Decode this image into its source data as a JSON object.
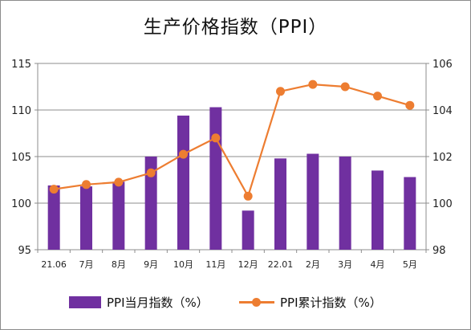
{
  "chart_data": {
    "type": "bar",
    "title": "生产价格指数（PPI）",
    "categories": [
      "21.06",
      "7月",
      "8月",
      "9月",
      "10月",
      "11月",
      "12月",
      "22.01",
      "2月",
      "3月",
      "4月",
      "5月"
    ],
    "y_left": {
      "ylim": [
        95,
        115
      ],
      "ticks": [
        "95",
        "100",
        "105",
        "110",
        "115"
      ]
    },
    "y_right": {
      "ylim": [
        98,
        106
      ],
      "ticks": [
        "98",
        "100",
        "102",
        "104",
        "106"
      ]
    },
    "grid": "horizontal",
    "legend_position": "bottom",
    "series": [
      {
        "name": "PPI当月指数（%）",
        "type": "bar",
        "axis": "left",
        "color": "#7030a0",
        "values": [
          101.9,
          101.8,
          102.3,
          105.0,
          109.4,
          110.3,
          99.2,
          104.8,
          105.3,
          105.0,
          103.5,
          102.8
        ]
      },
      {
        "name": "PPI累计指数（%）",
        "type": "line",
        "axis": "right",
        "color": "#ed7d31",
        "values": [
          100.6,
          100.8,
          100.9,
          101.3,
          102.1,
          102.8,
          100.3,
          104.8,
          105.1,
          105.0,
          104.6,
          104.2
        ]
      }
    ]
  }
}
